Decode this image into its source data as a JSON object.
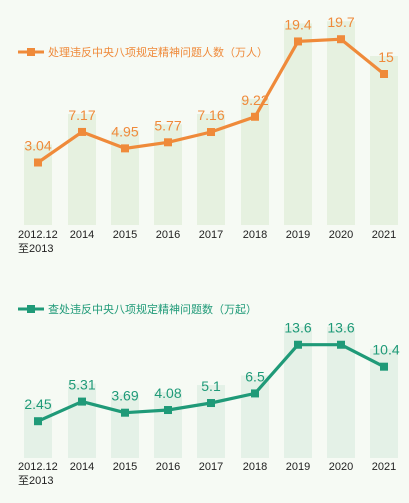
{
  "colors": {
    "series1": "#ef8a3a",
    "series2": "#1f9a78",
    "bars1": "#d9ead0",
    "bars2": "#d6e9dc",
    "background": "#f6faf4"
  },
  "chart_data": [
    {
      "type": "line",
      "title": "",
      "xlabel": "",
      "ylabel": "",
      "categories": [
        "2012.12\n至2013",
        "2014",
        "2015",
        "2016",
        "2017",
        "2018",
        "2019",
        "2020",
        "2021"
      ],
      "series": [
        {
          "name": "处理违反中央八项规定精神问题人数（万人）",
          "values": [
            3.04,
            7.17,
            4.95,
            5.77,
            7.16,
            9.22,
            19.4,
            19.7,
            15
          ],
          "value_labels": [
            "3.04",
            "7.17",
            "4.95",
            "5.77",
            "7.16",
            "9.22",
            "19.4",
            "19.7",
            "15"
          ]
        }
      ],
      "ylim": [
        0,
        20
      ],
      "grid": false,
      "legend": "top-left",
      "background_bars": true
    },
    {
      "type": "line",
      "title": "",
      "xlabel": "",
      "ylabel": "",
      "categories": [
        "2012.12\n至2013",
        "2014",
        "2015",
        "2016",
        "2017",
        "2018",
        "2019",
        "2020",
        "2021"
      ],
      "series": [
        {
          "name": "查处违反中央八项规定精神问题数（万起）",
          "values": [
            2.45,
            5.31,
            3.69,
            4.08,
            5.1,
            6.5,
            13.6,
            13.6,
            10.4
          ],
          "value_labels": [
            "2.45",
            "5.31",
            "3.69",
            "4.08",
            "5.1",
            "6.5",
            "13.6",
            "13.6",
            "10.4"
          ]
        }
      ],
      "ylim": [
        0,
        14
      ],
      "grid": false,
      "legend": "top-left",
      "background_bars": true
    }
  ]
}
